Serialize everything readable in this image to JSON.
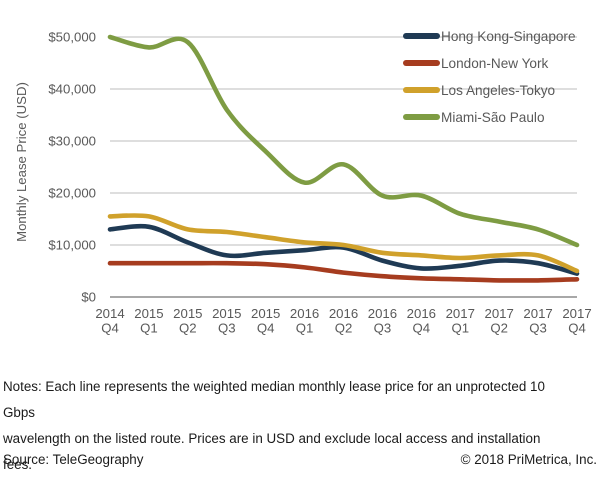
{
  "chart_data": {
    "type": "line",
    "title": "",
    "xlabel": "",
    "ylabel": "Monthly Lease Price (USD)",
    "categories": [
      "2014 Q4",
      "2015 Q1",
      "2015 Q2",
      "2015 Q3",
      "2015 Q4",
      "2016 Q1",
      "2016 Q2",
      "2016 Q3",
      "2016 Q4",
      "2017 Q1",
      "2017 Q2",
      "2017 Q3",
      "2017 Q4"
    ],
    "series": [
      {
        "name": "Hong Kong-Singapore",
        "color": "#1f3a54",
        "values": [
          13000,
          13500,
          10500,
          8000,
          8500,
          9000,
          9500,
          7000,
          5500,
          6000,
          7000,
          6500,
          4500
        ]
      },
      {
        "name": "London-New York",
        "color": "#a63c1f",
        "values": [
          6500,
          6500,
          6500,
          6500,
          6300,
          5700,
          4700,
          4000,
          3600,
          3400,
          3200,
          3200,
          3400
        ]
      },
      {
        "name": "Los Angeles-Tokyo",
        "color": "#d0a12b",
        "values": [
          15500,
          15500,
          13000,
          12500,
          11500,
          10500,
          10000,
          8500,
          8000,
          7500,
          8000,
          8000,
          5000
        ]
      },
      {
        "name": "Miami-São Paulo",
        "color": "#7e9c43",
        "values": [
          50000,
          48000,
          49000,
          36000,
          28000,
          22000,
          25500,
          19500,
          19500,
          16000,
          14500,
          13000,
          10000
        ]
      }
    ],
    "ylim": [
      0,
      50000
    ],
    "y_ticks": [
      0,
      10000,
      20000,
      30000,
      40000,
      50000
    ],
    "y_tick_labels": [
      "$0",
      "$10,000",
      "$20,000",
      "$30,000",
      "$40,000",
      "$50,000"
    ],
    "grid": true,
    "legend_position": "top-right",
    "colors": {
      "grid_line": "#c9c9c9",
      "zero_line": "#8c8c8c",
      "axis_text": "#595959"
    }
  },
  "notes": {
    "line1": "Notes: Each line represents the weighted median monthly lease price for an unprotected 10 Gbps",
    "line2": "wavelength on the listed route. Prices are in USD and exclude local access and installation fees."
  },
  "footer": {
    "source_label": "Source: TeleGeography",
    "copyright_label": "© 2018 PriMetrica, Inc."
  }
}
